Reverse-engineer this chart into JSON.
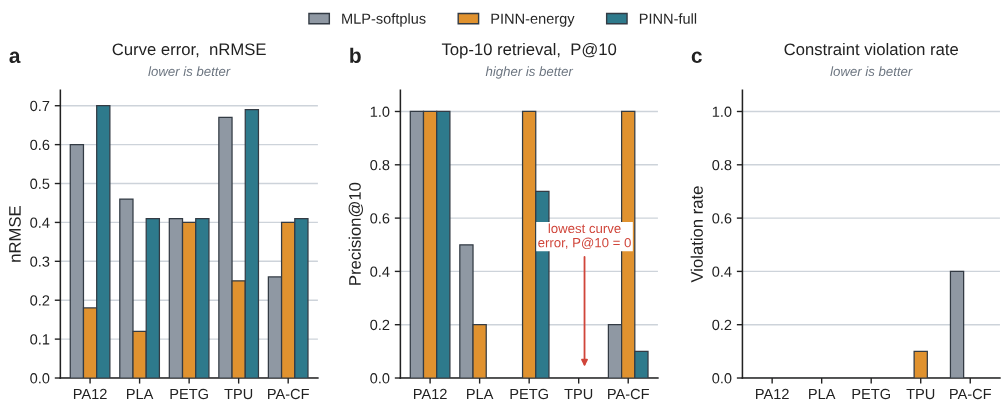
{
  "chart_data": [
    {
      "type": "bar",
      "title": "Curve error,  nRMSE",
      "subtitle": "lower is better",
      "ylabel": "nRMSE",
      "annotations": [
        "a"
      ],
      "categories": [
        "PA12",
        "PLA",
        "PETG",
        "TPU",
        "PA-CF"
      ],
      "series": [
        {
          "name": "MLP-softplus",
          "color": "#8f98a3",
          "values": [
            0.6,
            0.46,
            0.41,
            0.67,
            0.26
          ]
        },
        {
          "name": "PINN-energy",
          "color": "#e0922f",
          "values": [
            0.18,
            0.12,
            0.4,
            0.25,
            0.4
          ]
        },
        {
          "name": "PINN-full",
          "color": "#2e7a8c",
          "values": [
            0.7,
            0.41,
            0.41,
            0.69,
            0.41
          ]
        }
      ],
      "ylim": [
        0,
        0.74
      ],
      "yticks": [
        "0.0",
        0.1,
        0.2,
        0.3,
        0.4,
        0.5,
        0.6,
        0.7
      ],
      "grid": "y",
      "legend": "top"
    },
    {
      "type": "bar",
      "title": "Top-10 retrieval,  P@10",
      "subtitle": "higher is better",
      "ylabel": "Precision@10",
      "annotations": [
        "b",
        "lowest curve\nerror, P@10 = 0"
      ],
      "categories": [
        "PA12",
        "PLA",
        "PETG",
        "TPU",
        "PA-CF"
      ],
      "series": [
        {
          "color": "#8f98a3",
          "values": [
            1.0,
            0.5,
            0,
            0,
            0.2
          ]
        },
        {
          "color": "#e0922f",
          "values": [
            1.0,
            0.2,
            1.0,
            0,
            1.0
          ]
        },
        {
          "color": "#2e7a8c",
          "values": [
            1.0,
            0,
            0.7,
            0,
            0.1
          ]
        }
      ],
      "ylim": [
        0,
        1.08
      ],
      "yticks": [
        "0.0",
        0.2,
        0.4,
        0.6,
        0.8,
        "1.0"
      ],
      "grid": "y"
    },
    {
      "type": "bar",
      "title": "Constraint violation rate",
      "subtitle": "lower is better",
      "ylabel": "Violation rate",
      "annotations": [
        "c"
      ],
      "categories": [
        "PA12",
        "PLA",
        "PETG",
        "TPU",
        "PA-CF"
      ],
      "series": [
        {
          "color": "#8f98a3",
          "values": [
            0,
            0,
            0,
            0,
            0.4
          ]
        },
        {
          "color": "#e0922f",
          "values": [
            0,
            0,
            0,
            0.1,
            0
          ]
        },
        {
          "color": "#2e7a8c",
          "values": [
            0,
            0,
            0,
            0,
            0
          ]
        }
      ],
      "ylim": [
        0,
        1.08
      ],
      "yticks": [
        "0.0",
        0.2,
        0.4,
        0.6,
        0.8,
        "1.0"
      ],
      "grid": "y"
    }
  ]
}
